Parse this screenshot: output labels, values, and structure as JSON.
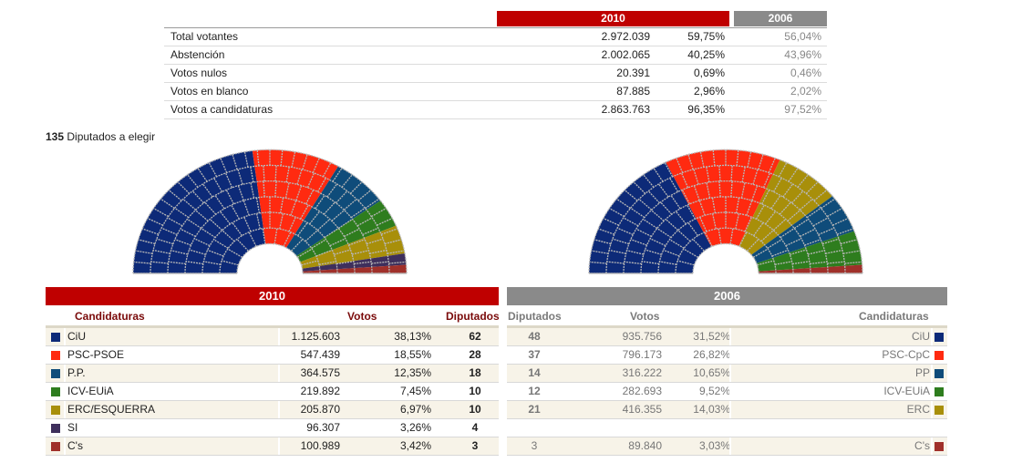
{
  "summary": {
    "year_current": "2010",
    "year_previous": "2006",
    "rows": [
      {
        "label": "Total votantes",
        "value": "2.972.039",
        "pct": "59,75%",
        "pct_prev": "56,04%"
      },
      {
        "label": "Abstención",
        "value": "2.002.065",
        "pct": "40,25%",
        "pct_prev": "43,96%"
      },
      {
        "label": "Votos nulos",
        "value": "20.391",
        "pct": "0,69%",
        "pct_prev": "0,46%"
      },
      {
        "label": "Votos en blanco",
        "value": "87.885",
        "pct": "2,96%",
        "pct_prev": "2,02%"
      },
      {
        "label": "Votos a candidaturas",
        "value": "2.863.763",
        "pct": "96,35%",
        "pct_prev": "97,52%"
      }
    ]
  },
  "seats": {
    "total": "135",
    "label": "Diputados a elegir"
  },
  "colors": {
    "CiU": "#0d2a78",
    "PSC": "#ff2a10",
    "PP": "#0f4c7a",
    "ICV": "#2e7d1e",
    "ERC": "#a88f0a",
    "SI": "#3e2f5c",
    "Cs": "#a0302a",
    "accent_2010": "#bf0000",
    "accent_2006": "#8a8a8a",
    "grid": "#b8b8b8"
  },
  "chart_data": [
    {
      "type": "pie",
      "title": "2010",
      "categories": [
        "CiU",
        "PSC-PSOE",
        "P.P.",
        "ICV-EUiA",
        "ERC/ESQUERRA",
        "SI",
        "C's"
      ],
      "values": [
        62,
        28,
        18,
        10,
        10,
        4,
        3
      ]
    },
    {
      "type": "pie",
      "title": "2006",
      "categories": [
        "CiU",
        "PSC-CpC",
        "ERC",
        "PP",
        "ICV-EUiA",
        "C's"
      ],
      "values": [
        48,
        37,
        21,
        14,
        12,
        3
      ]
    }
  ],
  "results": {
    "title_2010": "2010",
    "title_2006": "2006",
    "headers_2010": {
      "candidaturas": "Candidaturas",
      "votos": "Votos",
      "diputados": "Diputados"
    },
    "headers_2006": {
      "diputados": "Diputados",
      "votos": "Votos",
      "candidaturas": "Candidaturas"
    },
    "rows": [
      {
        "color_key": "CiU",
        "name": "CiU",
        "votes": "1.125.603",
        "pct": "38,13%",
        "seats": "62",
        "prev": {
          "seats": "48",
          "votes": "935.756",
          "pct": "31,52%",
          "name": "CiU",
          "color_key": "CiU",
          "bold": true
        }
      },
      {
        "color_key": "PSC",
        "name": "PSC-PSOE",
        "votes": "547.439",
        "pct": "18,55%",
        "seats": "28",
        "prev": {
          "seats": "37",
          "votes": "796.173",
          "pct": "26,82%",
          "name": "PSC-CpC",
          "color_key": "PSC",
          "bold": true
        }
      },
      {
        "color_key": "PP",
        "name": "P.P.",
        "votes": "364.575",
        "pct": "12,35%",
        "seats": "18",
        "prev": {
          "seats": "14",
          "votes": "316.222",
          "pct": "10,65%",
          "name": "PP",
          "color_key": "PP",
          "bold": true
        }
      },
      {
        "color_key": "ICV",
        "name": "ICV-EUiA",
        "votes": "219.892",
        "pct": "7,45%",
        "seats": "10",
        "prev": {
          "seats": "12",
          "votes": "282.693",
          "pct": "9,52%",
          "name": "ICV-EUiA",
          "color_key": "ICV",
          "bold": true
        }
      },
      {
        "color_key": "ERC",
        "name": "ERC/ESQUERRA",
        "votes": "205.870",
        "pct": "6,97%",
        "seats": "10",
        "prev": {
          "seats": "21",
          "votes": "416.355",
          "pct": "14,03%",
          "name": "ERC",
          "color_key": "ERC",
          "bold": true
        }
      },
      {
        "color_key": "SI",
        "name": "SI",
        "votes": "96.307",
        "pct": "3,26%",
        "seats": "4",
        "prev": null
      },
      {
        "color_key": "Cs",
        "name": "C's",
        "votes": "100.989",
        "pct": "3,42%",
        "seats": "3",
        "prev": {
          "seats": "3",
          "votes": "89.840",
          "pct": "3,03%",
          "name": "C's",
          "color_key": "Cs",
          "bold": false
        }
      }
    ]
  }
}
